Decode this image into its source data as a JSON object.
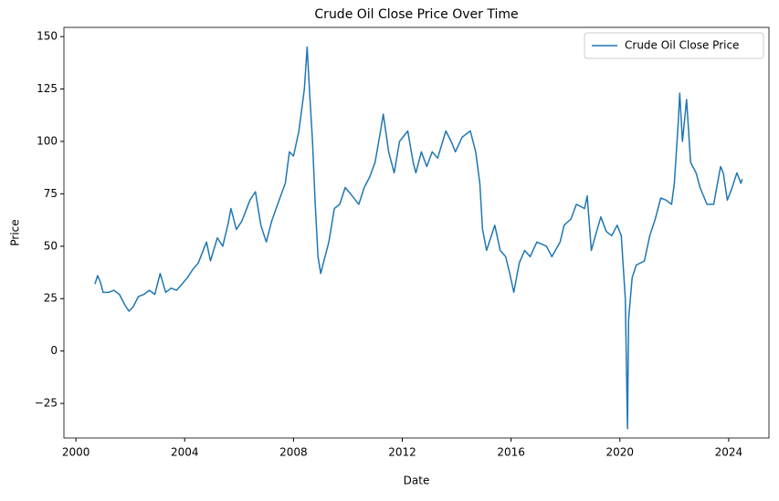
{
  "chart_data": {
    "type": "line",
    "title": "Crude Oil Close Price Over Time",
    "x_label": "Date",
    "y_label": "Price",
    "x": [
      2000.7,
      2000.8,
      2000.9,
      2001.0,
      2001.2,
      2001.4,
      2001.6,
      2001.8,
      2001.95,
      2002.1,
      2002.3,
      2002.5,
      2002.7,
      2002.9,
      2003.1,
      2003.3,
      2003.5,
      2003.7,
      2003.9,
      2004.1,
      2004.3,
      2004.5,
      2004.8,
      2004.95,
      2005.2,
      2005.4,
      2005.6,
      2005.7,
      2005.9,
      2006.1,
      2006.4,
      2006.6,
      2006.8,
      2007.0,
      2007.2,
      2007.5,
      2007.7,
      2007.85,
      2008.0,
      2008.2,
      2008.4,
      2008.5,
      2008.6,
      2008.7,
      2008.8,
      2008.9,
      2009.0,
      2009.1,
      2009.3,
      2009.5,
      2009.7,
      2009.9,
      2010.1,
      2010.4,
      2010.6,
      2010.8,
      2011.0,
      2011.2,
      2011.3,
      2011.5,
      2011.7,
      2011.9,
      2012.2,
      2012.4,
      2012.5,
      2012.7,
      2012.9,
      2013.1,
      2013.3,
      2013.6,
      2013.8,
      2013.95,
      2014.2,
      2014.5,
      2014.7,
      2014.85,
      2014.95,
      2015.1,
      2015.4,
      2015.6,
      2015.8,
      2015.95,
      2016.1,
      2016.3,
      2016.5,
      2016.7,
      2016.95,
      2017.3,
      2017.5,
      2017.8,
      2017.95,
      2018.2,
      2018.4,
      2018.7,
      2018.8,
      2018.95,
      2019.1,
      2019.3,
      2019.5,
      2019.7,
      2019.9,
      2020.05,
      2020.2,
      2020.28,
      2020.32,
      2020.45,
      2020.6,
      2020.9,
      2021.1,
      2021.3,
      2021.5,
      2021.7,
      2021.9,
      2022.0,
      2022.15,
      2022.2,
      2022.3,
      2022.45,
      2022.6,
      2022.8,
      2022.95,
      2023.2,
      2023.45,
      2023.7,
      2023.8,
      2023.95,
      2024.1,
      2024.3,
      2024.45,
      2024.5
    ],
    "series": [
      {
        "name": "Crude Oil Close Price",
        "color": "#1f77b4",
        "values": [
          32,
          36,
          33,
          28,
          28,
          29,
          27,
          22,
          19,
          21,
          26,
          27,
          29,
          27,
          37,
          28,
          30,
          29,
          32,
          35,
          39,
          42,
          52,
          43,
          54,
          50,
          61,
          68,
          58,
          62,
          72,
          76,
          60,
          52,
          62,
          73,
          80,
          95,
          93,
          105,
          125,
          145,
          122,
          100,
          70,
          45,
          37,
          42,
          52,
          68,
          70,
          78,
          75,
          70,
          78,
          83,
          90,
          105,
          113,
          95,
          85,
          100,
          105,
          90,
          85,
          95,
          88,
          95,
          92,
          105,
          100,
          95,
          102,
          105,
          95,
          80,
          58,
          48,
          60,
          48,
          45,
          37,
          28,
          42,
          48,
          45,
          52,
          50,
          45,
          52,
          60,
          63,
          70,
          68,
          74,
          48,
          55,
          64,
          57,
          55,
          60,
          55,
          25,
          -37,
          15,
          35,
          41,
          43,
          55,
          63,
          73,
          72,
          70,
          80,
          110,
          123,
          100,
          120,
          90,
          85,
          78,
          70,
          70,
          88,
          85,
          72,
          77,
          85,
          80,
          82
        ]
      }
    ],
    "xlim": [
      1999.56,
      2025.48
    ],
    "ylim": [
      -41.5,
      154.4
    ],
    "xticks": [
      2000,
      2004,
      2008,
      2012,
      2016,
      2020,
      2024
    ],
    "yticks": [
      {
        "value": -25,
        "label": "−25"
      },
      0,
      25,
      50,
      75,
      100,
      125,
      150
    ],
    "legend": "upper right"
  }
}
